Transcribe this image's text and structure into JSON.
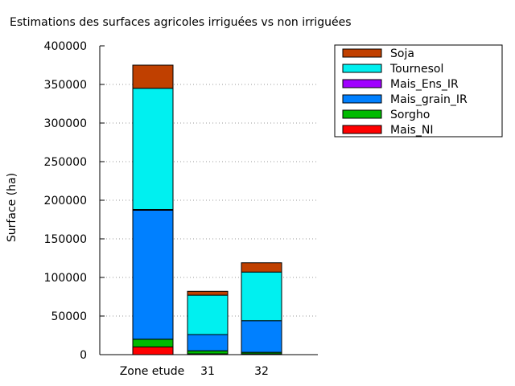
{
  "chart_data": {
    "type": "bar",
    "stacked": true,
    "title": "Estimations des surfaces agricoles irriguées vs non irriguées",
    "xlabel": "",
    "ylabel": "Surface (ha)",
    "ylim": [
      0,
      400000
    ],
    "yticks": [
      0,
      50000,
      100000,
      150000,
      200000,
      250000,
      300000,
      350000,
      400000
    ],
    "categories": [
      "Zone etude",
      "31",
      "32"
    ],
    "grid": "horizontal dotted",
    "legend_position": "top-right",
    "series": [
      {
        "name": "Mais_NI",
        "color": "#ff0000",
        "values": [
          10000,
          1000,
          1000
        ]
      },
      {
        "name": "Sorgho",
        "color": "#00bb00",
        "values": [
          10000,
          4000,
          2000
        ]
      },
      {
        "name": "Mais_grain_IR",
        "color": "#0080ff",
        "values": [
          167000,
          21000,
          41000
        ]
      },
      {
        "name": "Mais_Ens_IR",
        "color": "#a000ff",
        "values": [
          1000,
          0,
          0
        ]
      },
      {
        "name": "Tournesol",
        "color": "#00f0f0",
        "values": [
          157000,
          51000,
          63000
        ]
      },
      {
        "name": "Soja",
        "color": "#c04000",
        "values": [
          30000,
          5000,
          12000
        ]
      }
    ],
    "legend_order": [
      "Soja",
      "Tournesol",
      "Mais_Ens_IR",
      "Mais_grain_IR",
      "Sorgho",
      "Mais_NI"
    ]
  }
}
